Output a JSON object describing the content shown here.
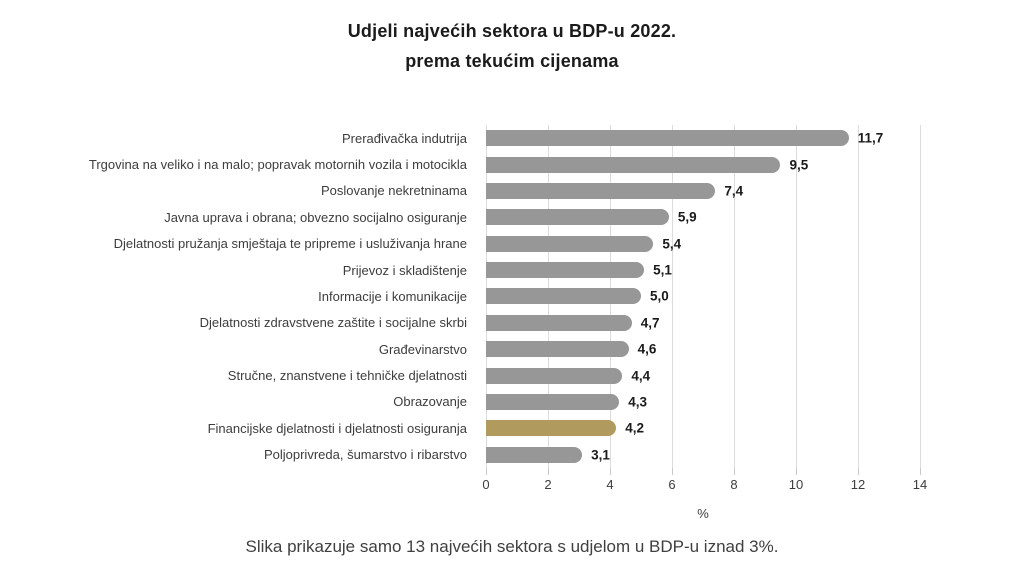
{
  "title": {
    "line1": "Udjeli najvećih sektora u BDP-u 2022.",
    "line2": "prema tekućim cijenama"
  },
  "caption": "Slika prikazuje samo 13 najvećih sektora s udjelom u BDP-u iznad 3%.",
  "chart_data": {
    "type": "bar",
    "orientation": "horizontal",
    "title": "Udjeli najvećih sektora u BDP-u 2022. prema tekućim cijenama",
    "categories": [
      "Prerađivačka indutrija",
      "Trgovina na veliko i na malo; popravak motornih vozila i motocikla",
      "Poslovanje nekretninama",
      "Javna uprava i obrana; obvezno socijalno osiguranje",
      "Djelatnosti pružanja smještaja te pripreme i usluživanja hrane",
      "Prijevoz i skladištenje",
      "Informacije i komunikacije",
      "Djelatnosti zdravstvene zaštite i socijalne skrbi",
      "Građevinarstvo",
      "Stručne, znanstvene i tehničke djelatnosti",
      "Obrazovanje",
      "Financijske djelatnosti i djelatnosti osiguranja",
      "Poljoprivreda, šumarstvo i ribarstvo"
    ],
    "values": [
      11.7,
      9.5,
      7.4,
      5.9,
      5.4,
      5.1,
      5.0,
      4.7,
      4.6,
      4.4,
      4.3,
      4.2,
      3.1
    ],
    "value_labels": [
      "11,7",
      "9,5",
      "7,4",
      "5,9",
      "5,4",
      "5,1",
      "5,0",
      "4,7",
      "4,6",
      "4,4",
      "4,3",
      "4,2",
      "3,1"
    ],
    "highlighted_index": 11,
    "highlighted_category": "Financijske djelatnosti i djelatnosti osiguranja",
    "xlabel": "%",
    "xlim": [
      0,
      14
    ],
    "xticks": [
      0,
      2,
      4,
      6,
      8,
      10,
      12,
      14
    ],
    "grid": true,
    "legend": false,
    "colors": {
      "bar": "#979797",
      "highlight": "#b09a5e",
      "grid": "#dcdcdc",
      "value_text": "#1a1a1a",
      "label_text": "#3d3d3d",
      "title_text": "#1b1b1b"
    }
  }
}
